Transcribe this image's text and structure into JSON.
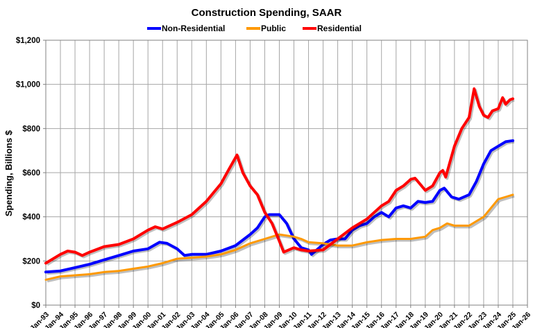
{
  "chart_data": {
    "type": "line",
    "title": "Construction Spending, SAAR",
    "ylabel": "Spending, Billions $",
    "xlabel": "",
    "ylim": [
      0,
      1200
    ],
    "yticks": [
      0,
      200,
      400,
      600,
      800,
      1000,
      1200
    ],
    "ytick_labels": [
      "$0",
      "$200",
      "$400",
      "$600",
      "$800",
      "$1,000",
      "$1,200"
    ],
    "xlim": [
      1993,
      2026
    ],
    "xtick_labels": [
      "Jan-93",
      "Jan-94",
      "Jan-95",
      "Jan-96",
      "Jan-97",
      "Jan-98",
      "Jan-99",
      "Jan-00",
      "Jan-01",
      "Jan-02",
      "Jan-03",
      "Jan-04",
      "Jan-05",
      "Jan-06",
      "Jan-07",
      "Jan-08",
      "Jan-09",
      "Jan-10",
      "Jan-11",
      "Jan-12",
      "Jan-13",
      "Jan-14",
      "Jan-15",
      "Jan-16",
      "Jan-17",
      "Jan-18",
      "Jan-19",
      "Jan-20",
      "Jan-21",
      "Jan-22",
      "Jan-23",
      "Jan-24",
      "Jan-25",
      "Jan-26"
    ],
    "grid": true,
    "legend_position": "top",
    "series": [
      {
        "name": "Non-Residential",
        "color": "#0000ff",
        "x": [
          1993,
          1994,
          1995,
          1996,
          1997,
          1998,
          1999,
          2000,
          2000.8,
          2001.3,
          2002,
          2002.5,
          2003,
          2004,
          2005,
          2006,
          2007,
          2007.5,
          2008,
          2008.3,
          2009,
          2009.5,
          2010,
          2010.5,
          2011,
          2011.2,
          2012,
          2012.5,
          2013,
          2013.5,
          2014,
          2014.5,
          2015,
          2015.5,
          2016,
          2016.5,
          2017,
          2017.5,
          2018,
          2018.5,
          2019,
          2019.5,
          2020,
          2020.3,
          2020.8,
          2021.3,
          2022,
          2022.5,
          2023,
          2023.5,
          2024,
          2024.5,
          2025
        ],
        "y": [
          150,
          155,
          170,
          185,
          205,
          225,
          245,
          255,
          285,
          280,
          255,
          225,
          230,
          230,
          245,
          270,
          320,
          350,
          400,
          410,
          410,
          370,
          300,
          260,
          250,
          230,
          275,
          295,
          300,
          300,
          340,
          360,
          370,
          400,
          420,
          400,
          440,
          450,
          440,
          470,
          465,
          470,
          520,
          530,
          490,
          480,
          500,
          560,
          640,
          700,
          720,
          740,
          745
        ]
      },
      {
        "name": "Public",
        "color": "#ff9900",
        "x": [
          1993,
          1994,
          1995,
          1996,
          1997,
          1998,
          1999,
          2000,
          2001,
          2002,
          2003,
          2004,
          2005,
          2006,
          2007,
          2008,
          2009,
          2009.5,
          2010,
          2010.5,
          2011,
          2012,
          2013,
          2014,
          2015,
          2016,
          2017,
          2018,
          2019,
          2019.5,
          2020,
          2020.5,
          2021,
          2022,
          2022.5,
          2023,
          2023.5,
          2024,
          2024.5,
          2025
        ],
        "y": [
          115,
          130,
          135,
          140,
          150,
          155,
          165,
          175,
          190,
          210,
          215,
          220,
          230,
          250,
          280,
          300,
          320,
          315,
          310,
          300,
          285,
          280,
          270,
          270,
          285,
          295,
          300,
          300,
          310,
          340,
          350,
          370,
          360,
          360,
          380,
          400,
          440,
          480,
          490,
          500
        ]
      },
      {
        "name": "Residential",
        "color": "#ff0000",
        "x": [
          1993,
          1994,
          1994.5,
          1995,
          1995.5,
          1996,
          1997,
          1998,
          1999,
          2000,
          2000.5,
          2001,
          2002,
          2003,
          2004,
          2004.5,
          2005,
          2005.5,
          2006.1,
          2006.5,
          2007,
          2007.5,
          2008,
          2008.5,
          2009,
          2009.3,
          2010,
          2010.5,
          2011,
          2012,
          2012.5,
          2013,
          2014,
          2015,
          2015.5,
          2016,
          2016.5,
          2017,
          2017.5,
          2018,
          2018.3,
          2019,
          2019.5,
          2020,
          2020.2,
          2020.4,
          2021,
          2021.5,
          2022,
          2022.35,
          2022.7,
          2023,
          2023.3,
          2023.6,
          2024,
          2024.3,
          2024.5,
          2024.8,
          2025
        ],
        "y": [
          190,
          230,
          245,
          240,
          225,
          240,
          265,
          275,
          300,
          340,
          355,
          345,
          375,
          410,
          470,
          510,
          550,
          610,
          680,
          600,
          540,
          500,
          420,
          370,
          290,
          240,
          260,
          250,
          245,
          250,
          275,
          300,
          350,
          390,
          420,
          450,
          470,
          520,
          540,
          570,
          575,
          520,
          540,
          600,
          610,
          580,
          720,
          800,
          850,
          980,
          900,
          860,
          850,
          880,
          890,
          940,
          910,
          930,
          935
        ]
      }
    ]
  }
}
